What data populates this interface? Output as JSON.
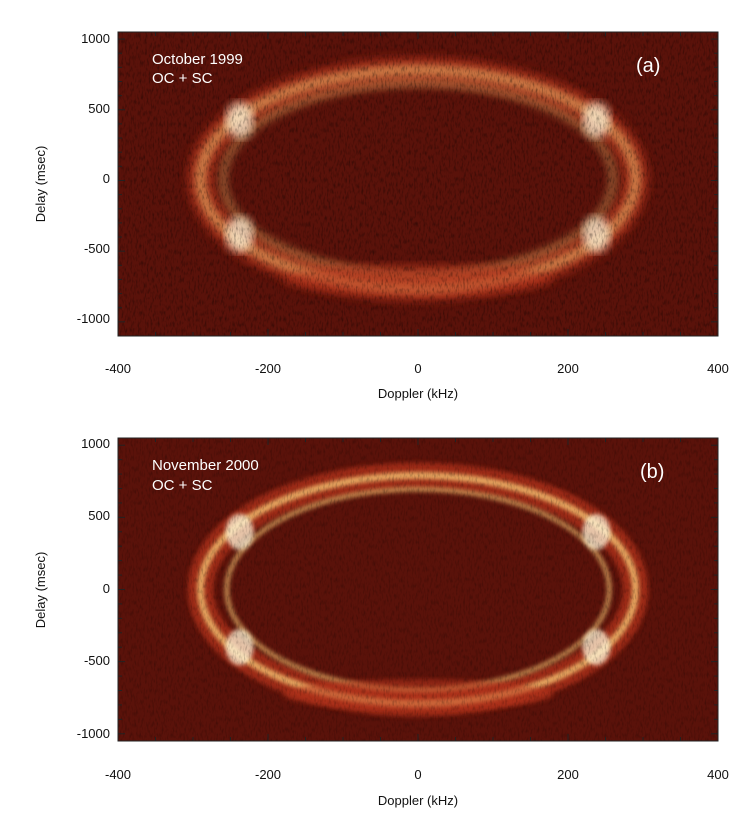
{
  "chart_data": [
    {
      "type": "heatmap",
      "panel_label": "(a)",
      "annotation_lines": [
        "October 1999",
        "OC + SC"
      ],
      "xlabel": "Doppler (kHz)",
      "ylabel": "Delay (msec)",
      "xlim": [
        -400,
        400
      ],
      "ylim": [
        -1100,
        1050
      ],
      "x_ticks": [
        -400,
        -200,
        0,
        200,
        400
      ],
      "y_ticks": [
        1000,
        500,
        0,
        -500,
        -1000
      ],
      "x_tick_labels": [
        "-400",
        "-200",
        "0",
        "200",
        "400"
      ],
      "y_tick_labels": [
        "1000",
        "500",
        "0",
        "-500",
        "-1000"
      ],
      "echo_outline": {
        "outer_ring_halfwidth_khz": 290,
        "inner_ring_halfwidth_khz": 260,
        "top_delay_msec": 780,
        "bottom_delay_msec": -760,
        "brightest_delay_msec": [
          450,
          -400
        ]
      },
      "colors": {
        "background": "#5a120a",
        "mid": "#b8341a",
        "bright": "#ffd27a",
        "peak": "#fff6d8"
      }
    },
    {
      "type": "heatmap",
      "panel_label": "(b)",
      "annotation_lines": [
        "November 2000",
        "OC + SC"
      ],
      "xlabel": "Doppler (kHz)",
      "ylabel": "Delay (msec)",
      "xlim": [
        -400,
        400
      ],
      "ylim": [
        -1050,
        1050
      ],
      "x_ticks": [
        -400,
        -200,
        0,
        200,
        400
      ],
      "y_ticks": [
        1000,
        500,
        0,
        -500,
        -1000
      ],
      "x_tick_labels": [
        "-400",
        "-200",
        "0",
        "200",
        "400"
      ],
      "y_tick_labels": [
        "1000",
        "500",
        "0",
        "-500",
        "-1000"
      ],
      "echo_outline": {
        "outer_ring_halfwidth_khz": 290,
        "inner_ring_halfwidth_khz": 255,
        "top_delay_msec": 790,
        "bottom_delay_msec": -790,
        "brightest_delay_msec": [
          420,
          -420
        ]
      },
      "colors": {
        "background": "#5a120a",
        "mid": "#b8341a",
        "bright": "#ffd27a",
        "peak": "#fff6d8"
      }
    }
  ]
}
